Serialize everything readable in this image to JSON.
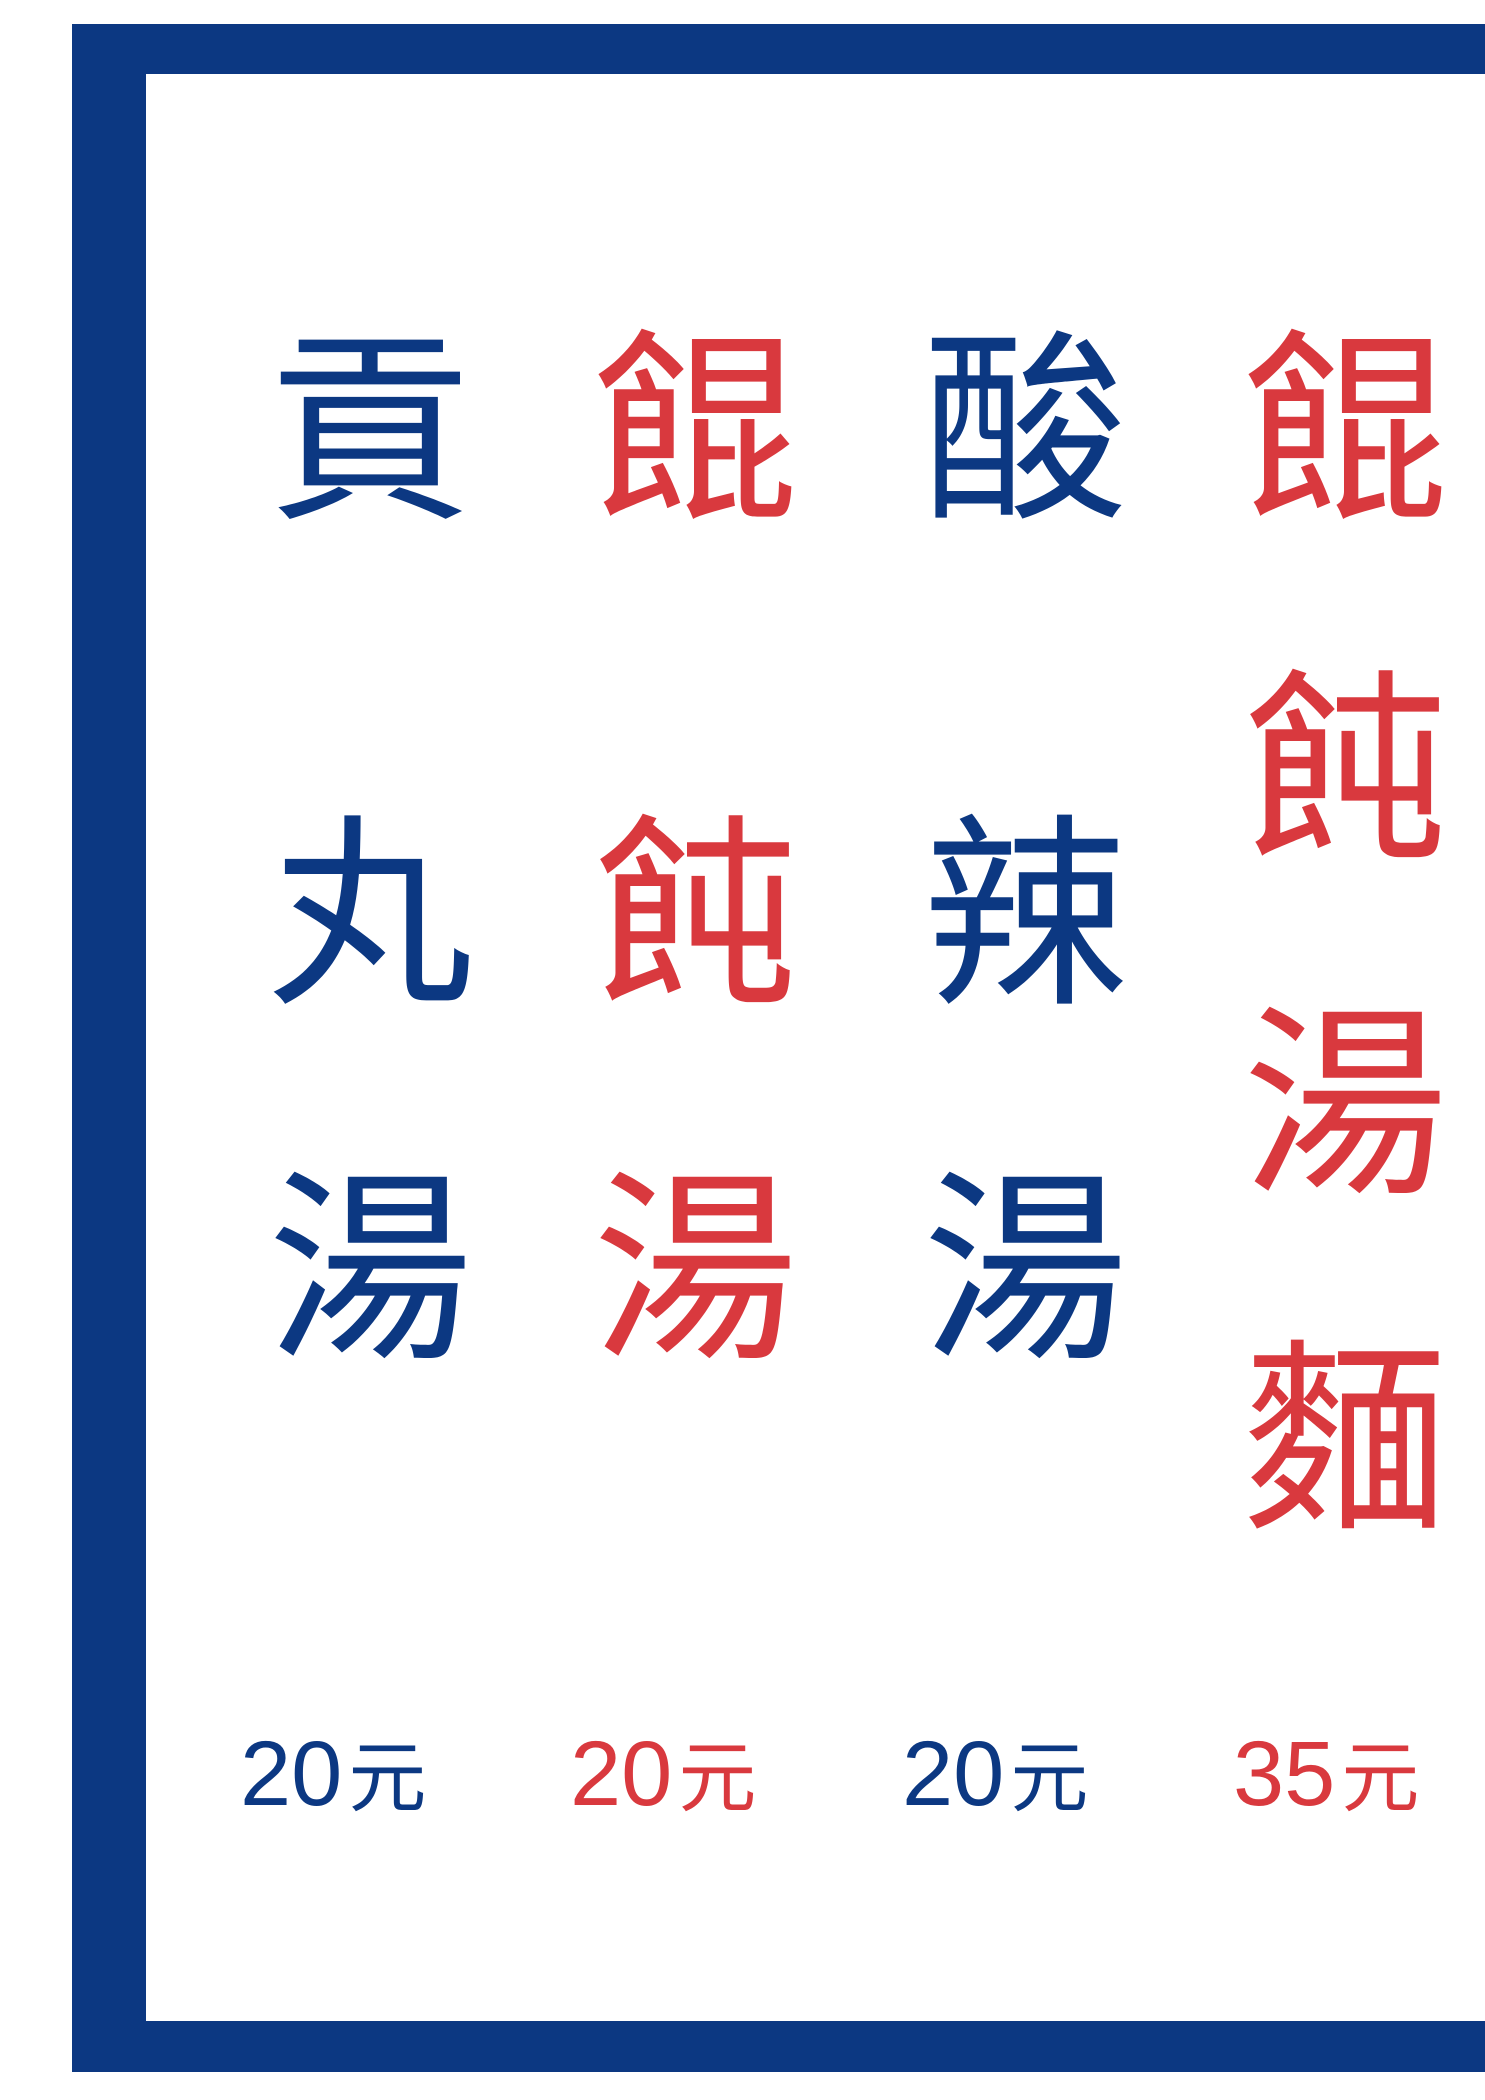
{
  "colors": {
    "navy": "#0c3882",
    "red": "#d9393e",
    "background": "#ffffff"
  },
  "menu": {
    "items": [
      {
        "chars": [
          "貢",
          "丸",
          "湯"
        ],
        "price": "20",
        "currency": "元",
        "color": "navy"
      },
      {
        "chars": [
          "餛",
          "飩",
          "湯"
        ],
        "price": "20",
        "currency": "元",
        "color": "red"
      },
      {
        "chars": [
          "酸",
          "辣",
          "湯"
        ],
        "price": "20",
        "currency": "元",
        "color": "navy"
      },
      {
        "chars": [
          "餛",
          "飩",
          "湯",
          "麵"
        ],
        "price": "35",
        "currency": "元",
        "color": "red"
      }
    ]
  }
}
